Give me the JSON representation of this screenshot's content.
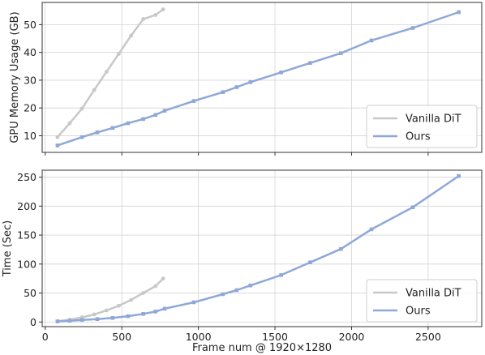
{
  "chart_data": {
    "type": "line",
    "xlabel": "Frame num @ 1920×1280",
    "xticks": [
      "0",
      "500",
      "1000",
      "1500",
      "2000",
      "2500"
    ],
    "xtick_values": [
      0,
      500,
      1000,
      1500,
      2000,
      2500
    ],
    "xlim": [
      -20,
      2850
    ],
    "grid": true,
    "legend_position": "bottom-right",
    "colors": {
      "vanilla": "#c8c8c8",
      "ours": "#8fa8d8"
    },
    "panels": [
      {
        "ylabel": "GPU Memory Usage (GB)",
        "ylim": [
          4,
          58
        ],
        "yticks": [
          "10",
          "20",
          "30",
          "40",
          "50"
        ],
        "ytick_values": [
          10,
          20,
          30,
          40,
          50
        ],
        "series": [
          {
            "name": "Vanilla DiT",
            "x": [
              80,
              160,
              240,
              320,
              400,
              480,
              560,
              640,
              720,
              770
            ],
            "y": [
              9.5,
              14.5,
              19.8,
              26.5,
              33.0,
              39.5,
              46.0,
              52.0,
              53.5,
              55.5
            ]
          },
          {
            "name": "Ours",
            "x": [
              80,
              240,
              340,
              440,
              540,
              640,
              720,
              780,
              970,
              1160,
              1250,
              1340,
              1540,
              1730,
              1930,
              2130,
              2400,
              2700
            ],
            "y": [
              6.5,
              9.5,
              11.2,
              12.8,
              14.5,
              16.0,
              17.5,
              19.0,
              22.5,
              25.7,
              27.5,
              29.3,
              32.8,
              36.2,
              39.7,
              44.3,
              48.8,
              54.5
            ]
          }
        ]
      },
      {
        "ylabel": "Time (Sec)",
        "ylim": [
          -8,
          262
        ],
        "yticks": [
          "0",
          "50",
          "100",
          "150",
          "200",
          "250"
        ],
        "ytick_values": [
          0,
          50,
          100,
          150,
          200,
          250
        ],
        "series": [
          {
            "name": "Vanilla DiT",
            "x": [
              80,
              160,
              240,
              320,
              400,
              480,
              560,
              640,
              720,
              770
            ],
            "y": [
              1.5,
              4,
              8,
              13,
              20,
              28,
              38,
              50,
              62,
              75
            ]
          },
          {
            "name": "Ours",
            "x": [
              80,
              160,
              240,
              340,
              440,
              540,
              640,
              720,
              780,
              970,
              1160,
              1250,
              1340,
              1540,
              1730,
              1930,
              2130,
              2400,
              2700
            ],
            "y": [
              1,
              2,
              3.5,
              5,
              7,
              10,
              14,
              18,
              23,
              34,
              48,
              55,
              63,
              81,
              103,
              126,
              160,
              198,
              252
            ]
          }
        ]
      }
    ]
  }
}
